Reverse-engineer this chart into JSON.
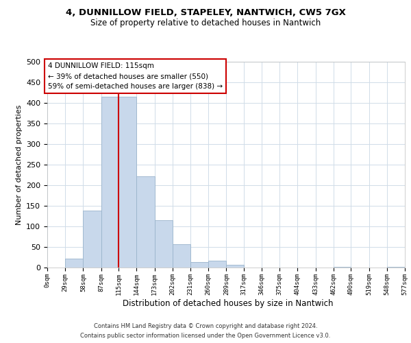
{
  "title1": "4, DUNNILLOW FIELD, STAPELEY, NANTWICH, CW5 7GX",
  "title2": "Size of property relative to detached houses in Nantwich",
  "xlabel": "Distribution of detached houses by size in Nantwich",
  "ylabel": "Number of detached properties",
  "bar_color": "#c8d8eb",
  "bar_edge_color": "#9ab4cc",
  "vline_x": 115,
  "vline_color": "#cc0000",
  "bin_edges": [
    0,
    29,
    58,
    87,
    115,
    144,
    173,
    202,
    231,
    260,
    289,
    317,
    346,
    375,
    404,
    433,
    462,
    490,
    519,
    548,
    577
  ],
  "bin_counts": [
    0,
    22,
    138,
    415,
    415,
    222,
    115,
    57,
    14,
    16,
    7,
    0,
    0,
    0,
    0,
    0,
    2,
    0,
    0,
    2
  ],
  "annotation_title": "4 DUNNILLOW FIELD: 115sqm",
  "annotation_line1": "← 39% of detached houses are smaller (550)",
  "annotation_line2": "59% of semi-detached houses are larger (838) →",
  "annotation_box_color": "#ffffff",
  "annotation_box_edge": "#cc0000",
  "footnote1": "Contains HM Land Registry data © Crown copyright and database right 2024.",
  "footnote2": "Contains public sector information licensed under the Open Government Licence v3.0.",
  "tick_labels": [
    "0sqm",
    "29sqm",
    "58sqm",
    "87sqm",
    "115sqm",
    "144sqm",
    "173sqm",
    "202sqm",
    "231sqm",
    "260sqm",
    "289sqm",
    "317sqm",
    "346sqm",
    "375sqm",
    "404sqm",
    "433sqm",
    "462sqm",
    "490sqm",
    "519sqm",
    "548sqm",
    "577sqm"
  ],
  "ylim": [
    0,
    500
  ],
  "yticks": [
    0,
    50,
    100,
    150,
    200,
    250,
    300,
    350,
    400,
    450,
    500
  ],
  "background_color": "#ffffff",
  "grid_color": "#d0dce8"
}
